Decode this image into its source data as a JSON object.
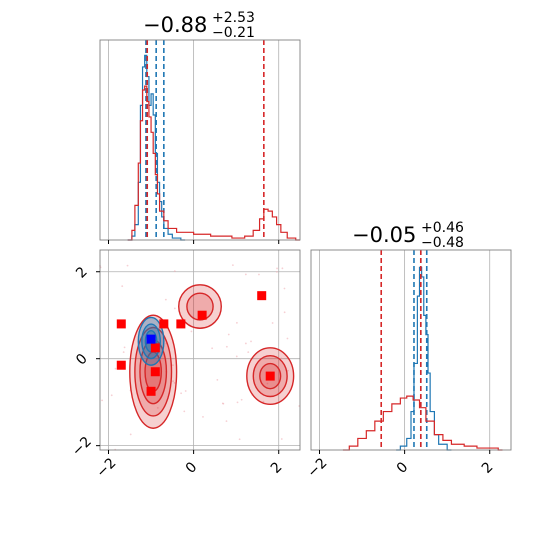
{
  "chart_data": [
    {
      "panel": "top-left marginal histogram",
      "type": "histogram",
      "title": {
        "main": "−0.88",
        "sup": "+2.53",
        "sub": "−0.21"
      },
      "xlim": [
        -2.2,
        2.5
      ],
      "x_gridlines": [
        -2,
        0,
        2
      ],
      "grid": true,
      "series": [
        {
          "color": "#1f77b4",
          "bins": [
            [
              -1.55,
              0.0
            ],
            [
              -1.45,
              0.02
            ],
            [
              -1.38,
              0.08
            ],
            [
              -1.3,
              0.3
            ],
            [
              -1.25,
              0.7
            ],
            [
              -1.2,
              0.9
            ],
            [
              -1.15,
              0.96
            ],
            [
              -1.1,
              0.85
            ],
            [
              -1.05,
              0.7
            ],
            [
              -1.0,
              0.76
            ],
            [
              -0.95,
              0.65
            ],
            [
              -0.9,
              0.45
            ],
            [
              -0.85,
              0.3
            ],
            [
              -0.8,
              0.2
            ],
            [
              -0.75,
              0.12
            ],
            [
              -0.7,
              0.06
            ],
            [
              -0.6,
              0.03
            ],
            [
              -0.5,
              0.01
            ],
            [
              -0.3,
              0.0
            ]
          ],
          "quantile_lines": [
            -1.12,
            -0.88,
            -0.7
          ]
        },
        {
          "color": "#d62728",
          "bins": [
            [
              -1.55,
              0.0
            ],
            [
              -1.45,
              0.05
            ],
            [
              -1.38,
              0.18
            ],
            [
              -1.3,
              0.4
            ],
            [
              -1.25,
              0.62
            ],
            [
              -1.2,
              0.78
            ],
            [
              -1.15,
              0.8
            ],
            [
              -1.1,
              0.72
            ],
            [
              -1.05,
              0.64
            ],
            [
              -1.0,
              0.56
            ],
            [
              -0.95,
              0.45
            ],
            [
              -0.9,
              0.34
            ],
            [
              -0.85,
              0.24
            ],
            [
              -0.8,
              0.15
            ],
            [
              -0.7,
              0.1
            ],
            [
              -0.6,
              0.06
            ],
            [
              -0.4,
              0.04
            ],
            [
              -0.2,
              0.04
            ],
            [
              0.0,
              0.03
            ],
            [
              0.2,
              0.03
            ],
            [
              0.4,
              0.02
            ],
            [
              0.6,
              0.02
            ],
            [
              0.9,
              0.01
            ],
            [
              1.2,
              0.02
            ],
            [
              1.4,
              0.05
            ],
            [
              1.55,
              0.11
            ],
            [
              1.65,
              0.16
            ],
            [
              1.75,
              0.15
            ],
            [
              1.85,
              0.12
            ],
            [
              1.95,
              0.08
            ],
            [
              2.05,
              0.04
            ],
            [
              2.2,
              0.01
            ],
            [
              2.4,
              0.0
            ]
          ],
          "quantile_lines": [
            -1.09,
            1.65
          ]
        }
      ]
    },
    {
      "panel": "bottom-right marginal histogram",
      "type": "histogram",
      "title": {
        "main": "−0.05",
        "sup": "+0.46",
        "sub": "−0.48"
      },
      "xlim": [
        -2.2,
        2.5
      ],
      "x_gridlines": [
        -2,
        0,
        2
      ],
      "grid": true,
      "x_tick_labels": [
        "−2",
        "0",
        "2"
      ],
      "series": [
        {
          "color": "#1f77b4",
          "bins": [
            [
              -0.2,
              0.0
            ],
            [
              -0.1,
              0.02
            ],
            [
              0.05,
              0.06
            ],
            [
              0.15,
              0.2
            ],
            [
              0.22,
              0.45
            ],
            [
              0.3,
              0.8
            ],
            [
              0.35,
              0.95
            ],
            [
              0.4,
              0.9
            ],
            [
              0.45,
              0.7
            ],
            [
              0.5,
              0.6
            ],
            [
              0.55,
              0.4
            ],
            [
              0.6,
              0.2
            ],
            [
              0.7,
              0.08
            ],
            [
              0.8,
              0.03
            ],
            [
              1.0,
              0.0
            ]
          ],
          "quantile_lines": [
            0.22,
            0.38,
            0.52
          ]
        },
        {
          "color": "#d62728",
          "bins": [
            [
              -1.45,
              0.0
            ],
            [
              -1.3,
              0.02
            ],
            [
              -1.1,
              0.06
            ],
            [
              -0.9,
              0.1
            ],
            [
              -0.7,
              0.15
            ],
            [
              -0.5,
              0.2
            ],
            [
              -0.3,
              0.24
            ],
            [
              -0.1,
              0.27
            ],
            [
              0.05,
              0.28
            ],
            [
              0.2,
              0.26
            ],
            [
              0.35,
              0.22
            ],
            [
              0.5,
              0.15
            ],
            [
              0.7,
              0.08
            ],
            [
              0.9,
              0.05
            ],
            [
              1.1,
              0.03
            ],
            [
              1.4,
              0.02
            ],
            [
              1.7,
              0.01
            ],
            [
              2.0,
              0.01
            ],
            [
              2.2,
              0.0
            ]
          ],
          "quantile_lines": [
            -0.55,
            0.38
          ]
        }
      ]
    },
    {
      "panel": "bottom-left 2D density",
      "type": "scatter",
      "xlim": [
        -2.2,
        2.5
      ],
      "ylim": [
        -2.1,
        2.5
      ],
      "grid": true,
      "x_tick_labels": [
        "−2",
        "0",
        "2"
      ],
      "y_tick_labels": [
        "−2",
        "0",
        "2"
      ],
      "modes": [
        {
          "color": "#d62728",
          "cx": -0.95,
          "cy": -0.3,
          "rx": 0.55,
          "ry": 1.3,
          "levels": 4
        },
        {
          "color": "#d62728",
          "cx": 0.15,
          "cy": 1.2,
          "rx": 0.5,
          "ry": 0.5,
          "levels": 2
        },
        {
          "color": "#d62728",
          "cx": 1.8,
          "cy": -0.4,
          "rx": 0.55,
          "ry": 0.65,
          "levels": 3
        },
        {
          "color": "#1f77b4",
          "cx": -1.0,
          "cy": 0.4,
          "rx": 0.3,
          "ry": 0.55,
          "levels": 3
        }
      ],
      "points": [
        {
          "color": "#ff0000",
          "x": -1.7,
          "y": 0.8
        },
        {
          "color": "#ff0000",
          "x": -1.7,
          "y": -0.15
        },
        {
          "color": "#ff0000",
          "x": -0.7,
          "y": 0.8
        },
        {
          "color": "#ff0000",
          "x": -0.3,
          "y": 0.8
        },
        {
          "color": "#ff0000",
          "x": 0.2,
          "y": 1.0
        },
        {
          "color": "#ff0000",
          "x": 1.6,
          "y": 1.45
        },
        {
          "color": "#ff0000",
          "x": -0.9,
          "y": 0.25
        },
        {
          "color": "#ff0000",
          "x": -0.9,
          "y": -0.3
        },
        {
          "color": "#ff0000",
          "x": -1.0,
          "y": -0.75
        },
        {
          "color": "#ff0000",
          "x": 1.8,
          "y": -0.4
        },
        {
          "color": "#0000ff",
          "x": -1.0,
          "y": 0.45
        }
      ]
    }
  ]
}
